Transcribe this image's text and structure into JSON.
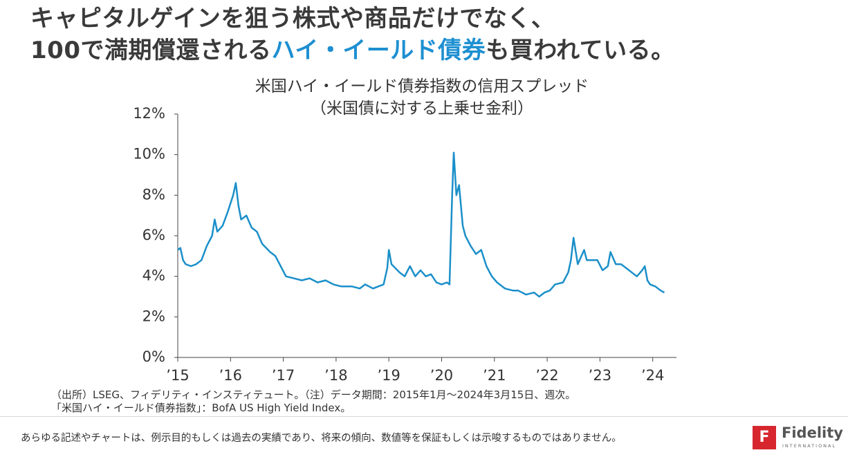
{
  "header": {
    "line1": "キャピタルゲインを狙う株式や商品だけでなく、",
    "line2_parts": [
      "100で満期償還される",
      "ハイ・イールド債券",
      "も買われている。"
    ]
  },
  "chart_data": {
    "type": "line",
    "title": "米国ハイ・イールド債券指数の信用スプレッド",
    "subtitle": "（米国債に対する上乗せ金利）",
    "color": "#1a8fc9",
    "x": [
      2015.0,
      2015.05,
      2015.1,
      2015.15,
      2015.25,
      2015.35,
      2015.45,
      2015.55,
      2015.65,
      2015.7,
      2015.75,
      2015.85,
      2015.95,
      2016.05,
      2016.1,
      2016.15,
      2016.2,
      2016.3,
      2016.4,
      2016.5,
      2016.6,
      2016.75,
      2016.85,
      2016.95,
      2017.05,
      2017.2,
      2017.35,
      2017.5,
      2017.65,
      2017.8,
      2017.95,
      2018.1,
      2018.2,
      2018.3,
      2018.45,
      2018.55,
      2018.7,
      2018.8,
      2018.9,
      2018.97,
      2019.0,
      2019.05,
      2019.2,
      2019.3,
      2019.4,
      2019.5,
      2019.6,
      2019.7,
      2019.8,
      2019.9,
      2020.0,
      2020.1,
      2020.15,
      2020.2,
      2020.23,
      2020.28,
      2020.33,
      2020.4,
      2020.45,
      2020.55,
      2020.65,
      2020.75,
      2020.85,
      2020.95,
      2021.05,
      2021.2,
      2021.35,
      2021.45,
      2021.6,
      2021.75,
      2021.85,
      2021.95,
      2022.05,
      2022.15,
      2022.3,
      2022.4,
      2022.45,
      2022.5,
      2022.58,
      2022.7,
      2022.75,
      2022.85,
      2022.95,
      2023.05,
      2023.15,
      2023.2,
      2023.3,
      2023.4,
      2023.5,
      2023.6,
      2023.7,
      2023.8,
      2023.85,
      2023.9,
      2023.95,
      2024.05,
      2024.15,
      2024.22
    ],
    "values": [
      5.3,
      5.4,
      4.8,
      4.6,
      4.5,
      4.6,
      4.8,
      5.5,
      6.0,
      6.8,
      6.2,
      6.5,
      7.2,
      8.0,
      8.6,
      7.5,
      6.8,
      7.0,
      6.4,
      6.2,
      5.6,
      5.2,
      5.0,
      4.5,
      4.0,
      3.9,
      3.8,
      3.9,
      3.7,
      3.8,
      3.6,
      3.5,
      3.5,
      3.5,
      3.4,
      3.6,
      3.4,
      3.5,
      3.6,
      4.4,
      5.3,
      4.6,
      4.2,
      4.0,
      4.5,
      4.0,
      4.3,
      4.0,
      4.1,
      3.7,
      3.6,
      3.7,
      3.6,
      8.0,
      10.1,
      8.0,
      8.5,
      6.5,
      6.0,
      5.5,
      5.1,
      5.3,
      4.5,
      4.0,
      3.7,
      3.4,
      3.3,
      3.3,
      3.1,
      3.2,
      3.0,
      3.2,
      3.3,
      3.6,
      3.7,
      4.2,
      4.8,
      5.9,
      4.6,
      5.3,
      4.8,
      4.8,
      4.8,
      4.3,
      4.5,
      5.2,
      4.6,
      4.6,
      4.4,
      4.2,
      4.0,
      4.3,
      4.5,
      3.8,
      3.6,
      3.5,
      3.3,
      3.2
    ],
    "xlim": [
      2015,
      2024.45
    ],
    "xticks": [
      {
        "value": 2015,
        "label": "’15"
      },
      {
        "value": 2016,
        "label": "’16"
      },
      {
        "value": 2017,
        "label": "’17"
      },
      {
        "value": 2018,
        "label": "’18"
      },
      {
        "value": 2019,
        "label": "’19"
      },
      {
        "value": 2020,
        "label": "’20"
      },
      {
        "value": 2021,
        "label": "’21"
      },
      {
        "value": 2022,
        "label": "’22"
      },
      {
        "value": 2023,
        "label": "’23"
      },
      {
        "value": 2024,
        "label": "’24"
      }
    ],
    "ylim": [
      0,
      12
    ],
    "yticks": [
      {
        "value": 0,
        "label": "0%"
      },
      {
        "value": 2,
        "label": "2%"
      },
      {
        "value": 4,
        "label": "4%"
      },
      {
        "value": 6,
        "label": "6%"
      },
      {
        "value": 8,
        "label": "8%"
      },
      {
        "value": 10,
        "label": "10%"
      },
      {
        "value": 12,
        "label": "12%"
      }
    ]
  },
  "notes": [
    "（出所）LSEG、フィデリティ・インスティテュート。（注）データ期間：2015年1月～2024年3月15日、週次。",
    "「米国ハイ・イールド債券指数」：BofA US High Yield Index。"
  ],
  "footer": {
    "disclaimer": "あらゆる記述やチャートは、例示目的もしくは過去の実績であり、将来の傾向、数値等を保証もしくは示唆するものではありません。",
    "logo": "Fidelity",
    "logo_sub": "INTERNATIONAL"
  }
}
